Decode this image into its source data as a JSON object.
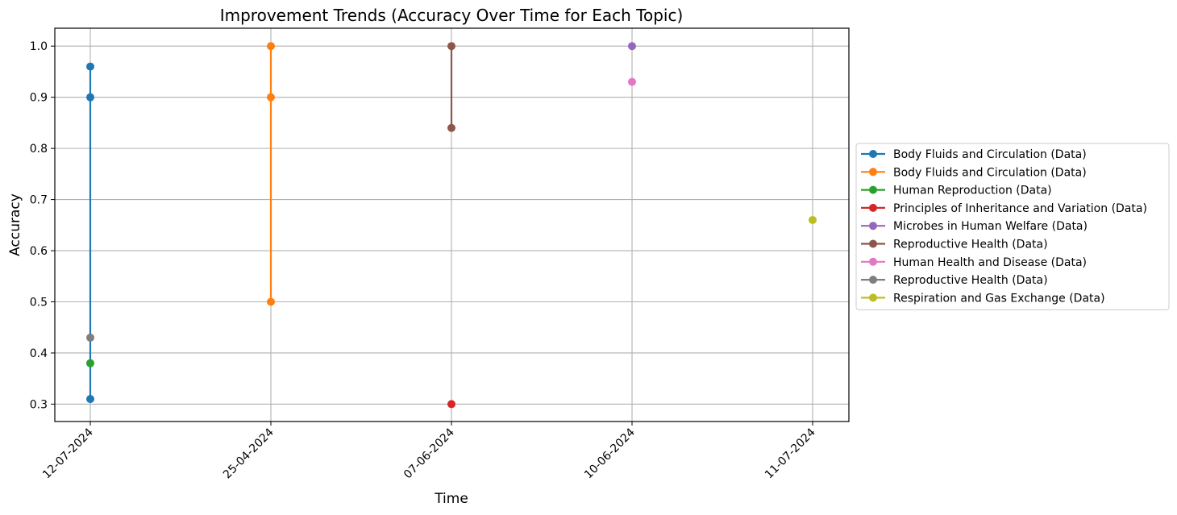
{
  "chart_data": {
    "type": "line",
    "title": "Improvement Trends (Accuracy Over Time for Each Topic)",
    "xlabel": "Time",
    "ylabel": "Accuracy",
    "x_categories": [
      "12-07-2024",
      "25-04-2024",
      "07-06-2024",
      "10-06-2024",
      "11-07-2024"
    ],
    "y_ticks": [
      0.3,
      0.4,
      0.5,
      0.6,
      0.7,
      0.8,
      0.9,
      1.0
    ],
    "y_tick_labels": [
      "0.3",
      "0.4",
      "0.5",
      "0.6",
      "0.7",
      "0.8",
      "0.9",
      "1.0"
    ],
    "ylim": [
      0.266,
      1.035
    ],
    "grid": true,
    "legend_position": "outside-right",
    "series": [
      {
        "name": "Body Fluids and Circulation (Data)",
        "color": "#1f77b4",
        "points": [
          {
            "x": "12-07-2024",
            "y": 0.96
          },
          {
            "x": "12-07-2024",
            "y": 0.9
          },
          {
            "x": "12-07-2024",
            "y": 0.31
          }
        ]
      },
      {
        "name": "Body Fluids and Circulation  (Data)",
        "color": "#ff7f0e",
        "points": [
          {
            "x": "25-04-2024",
            "y": 1.0
          },
          {
            "x": "25-04-2024",
            "y": 0.9
          },
          {
            "x": "25-04-2024",
            "y": 0.5
          }
        ]
      },
      {
        "name": "Human Reproduction (Data)",
        "color": "#2ca02c",
        "points": [
          {
            "x": "12-07-2024",
            "y": 0.38
          }
        ]
      },
      {
        "name": "Principles of Inheritance and Variation  (Data)",
        "color": "#d62728",
        "points": [
          {
            "x": "07-06-2024",
            "y": 0.3
          }
        ]
      },
      {
        "name": "Microbes in Human Welfare (Data)",
        "color": "#9467bd",
        "points": [
          {
            "x": "10-06-2024",
            "y": 1.0
          }
        ]
      },
      {
        "name": "Reproductive Health  (Data)",
        "color": "#8c564b",
        "points": [
          {
            "x": "07-06-2024",
            "y": 1.0
          },
          {
            "x": "07-06-2024",
            "y": 0.84
          }
        ]
      },
      {
        "name": "Human Health and Disease  (Data)",
        "color": "#e377c2",
        "points": [
          {
            "x": "10-06-2024",
            "y": 0.93
          }
        ]
      },
      {
        "name": "Reproductive Health (Data)",
        "color": "#7f7f7f",
        "points": [
          {
            "x": "12-07-2024",
            "y": 0.43
          }
        ]
      },
      {
        "name": "Respiration and Gas Exchange (Data)",
        "color": "#bcbd22",
        "points": [
          {
            "x": "11-07-2024",
            "y": 0.66
          }
        ]
      }
    ]
  }
}
